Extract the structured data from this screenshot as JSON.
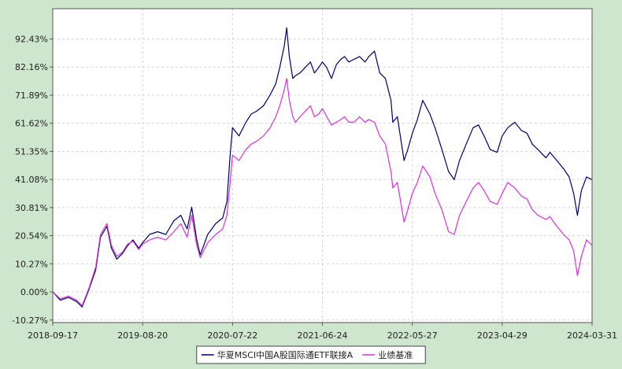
{
  "chart_data": {
    "type": "line",
    "title": "",
    "xlabel": "",
    "ylabel": "",
    "x_ticks": [
      "2018-09-17",
      "2019-08-20",
      "2020-07-22",
      "2021-06-24",
      "2022-05-27",
      "2023-04-29",
      "2024-03-31"
    ],
    "x_range": [
      "2018-09-17",
      "2024-03-31"
    ],
    "y_ticks": [
      "-10.27%",
      "0.00%",
      "10.27%",
      "20.54%",
      "30.81%",
      "41.08%",
      "51.35%",
      "61.62%",
      "71.89%",
      "82.16%",
      "92.43%"
    ],
    "ylim": [
      -11.2,
      103.5
    ],
    "grid": true,
    "legend_position": "bottom-center",
    "colors": {
      "background": "#cde6cd",
      "plot_bg": "#ffffff",
      "grid": "#d4d4d4"
    },
    "series": [
      {
        "name": "华夏MSCI中国A股国际通ETF联接A",
        "color": "#000066",
        "x": [
          "2018-09-17",
          "2018-10-15",
          "2018-11-15",
          "2018-12-15",
          "2019-01-05",
          "2019-01-31",
          "2019-02-25",
          "2019-03-15",
          "2019-04-08",
          "2019-04-25",
          "2019-05-15",
          "2019-06-05",
          "2019-06-25",
          "2019-07-15",
          "2019-08-05",
          "2019-08-20",
          "2019-09-15",
          "2019-10-15",
          "2019-11-15",
          "2019-12-15",
          "2020-01-10",
          "2020-02-03",
          "2020-02-20",
          "2020-03-10",
          "2020-03-23",
          "2020-04-20",
          "2020-05-20",
          "2020-06-15",
          "2020-07-01",
          "2020-07-13",
          "2020-07-22",
          "2020-08-15",
          "2020-09-10",
          "2020-09-30",
          "2020-10-20",
          "2020-11-15",
          "2020-12-10",
          "2020-12-31",
          "2021-01-15",
          "2021-02-01",
          "2021-02-10",
          "2021-02-20",
          "2021-03-05",
          "2021-03-15",
          "2021-04-01",
          "2021-04-20",
          "2021-05-10",
          "2021-05-25",
          "2021-06-10",
          "2021-06-24",
          "2021-07-10",
          "2021-07-28",
          "2021-08-15",
          "2021-09-01",
          "2021-09-15",
          "2021-10-01",
          "2021-10-20",
          "2021-11-10",
          "2021-12-01",
          "2021-12-15",
          "2022-01-05",
          "2022-01-25",
          "2022-02-15",
          "2022-03-08",
          "2022-03-15",
          "2022-04-01",
          "2022-04-26",
          "2022-05-10",
          "2022-05-27",
          "2022-06-15",
          "2022-07-05",
          "2022-08-01",
          "2022-08-20",
          "2022-09-15",
          "2022-10-10",
          "2022-10-31",
          "2022-11-20",
          "2022-12-15",
          "2023-01-10",
          "2023-01-30",
          "2023-02-20",
          "2023-03-15",
          "2023-04-10",
          "2023-04-29",
          "2023-05-20",
          "2023-06-15",
          "2023-07-10",
          "2023-07-31",
          "2023-08-20",
          "2023-09-10",
          "2023-10-10",
          "2023-10-25",
          "2023-11-20",
          "2023-12-15",
          "2024-01-05",
          "2024-01-22",
          "2024-02-05",
          "2024-02-20",
          "2024-03-10",
          "2024-03-31"
        ],
        "values": [
          0.0,
          -3.0,
          -2.0,
          -3.5,
          -5.5,
          1.0,
          8.0,
          20.0,
          24.0,
          16.0,
          12.0,
          14.0,
          17.0,
          19.0,
          16.0,
          18.0,
          21.0,
          22.0,
          21.0,
          26.0,
          28.0,
          23.0,
          31.0,
          19.0,
          13.5,
          21.0,
          25.0,
          27.0,
          33.0,
          50.0,
          60.0,
          57.0,
          62.0,
          65.0,
          66.0,
          68.0,
          72.0,
          76.0,
          82.0,
          90.0,
          96.5,
          86.0,
          78.0,
          79.0,
          80.0,
          82.0,
          84.0,
          80.0,
          82.0,
          84.0,
          82.0,
          78.0,
          83.0,
          85.0,
          86.0,
          84.0,
          85.0,
          86.0,
          84.0,
          86.0,
          88.0,
          80.0,
          78.0,
          70.0,
          62.0,
          64.0,
          48.0,
          52.0,
          58.0,
          63.0,
          70.0,
          65.0,
          60.0,
          52.0,
          44.0,
          41.0,
          48.0,
          54.0,
          60.0,
          61.0,
          57.0,
          52.0,
          51.0,
          57.0,
          60.0,
          62.0,
          59.0,
          58.0,
          54.0,
          52.0,
          49.0,
          51.0,
          48.0,
          45.0,
          42.0,
          36.0,
          28.0,
          37.0,
          42.0,
          41.0
        ]
      },
      {
        "name": "业绩基准",
        "color": "#d633d6",
        "x": [
          "2018-09-17",
          "2018-10-15",
          "2018-11-15",
          "2018-12-15",
          "2019-01-05",
          "2019-01-31",
          "2019-02-25",
          "2019-03-15",
          "2019-04-08",
          "2019-04-25",
          "2019-05-15",
          "2019-06-05",
          "2019-06-25",
          "2019-07-15",
          "2019-08-05",
          "2019-08-20",
          "2019-09-15",
          "2019-10-15",
          "2019-11-15",
          "2019-12-15",
          "2020-01-10",
          "2020-02-03",
          "2020-02-20",
          "2020-03-10",
          "2020-03-23",
          "2020-04-20",
          "2020-05-20",
          "2020-06-15",
          "2020-07-01",
          "2020-07-13",
          "2020-07-22",
          "2020-08-15",
          "2020-09-10",
          "2020-09-30",
          "2020-10-20",
          "2020-11-15",
          "2020-12-10",
          "2020-12-31",
          "2021-01-15",
          "2021-02-01",
          "2021-02-10",
          "2021-02-20",
          "2021-03-05",
          "2021-03-15",
          "2021-04-01",
          "2021-04-20",
          "2021-05-10",
          "2021-05-25",
          "2021-06-10",
          "2021-06-24",
          "2021-07-10",
          "2021-07-28",
          "2021-08-15",
          "2021-09-01",
          "2021-09-15",
          "2021-10-01",
          "2021-10-20",
          "2021-11-10",
          "2021-12-01",
          "2021-12-15",
          "2022-01-05",
          "2022-01-25",
          "2022-02-15",
          "2022-03-08",
          "2022-03-15",
          "2022-04-01",
          "2022-04-26",
          "2022-05-10",
          "2022-05-27",
          "2022-06-15",
          "2022-07-05",
          "2022-08-01",
          "2022-08-20",
          "2022-09-15",
          "2022-10-10",
          "2022-10-31",
          "2022-11-20",
          "2022-12-15",
          "2023-01-10",
          "2023-01-30",
          "2023-02-20",
          "2023-03-15",
          "2023-04-10",
          "2023-04-29",
          "2023-05-20",
          "2023-06-15",
          "2023-07-10",
          "2023-07-31",
          "2023-08-20",
          "2023-09-10",
          "2023-10-10",
          "2023-10-25",
          "2023-11-20",
          "2023-12-15",
          "2024-01-05",
          "2024-01-22",
          "2024-02-05",
          "2024-02-20",
          "2024-03-10",
          "2024-03-31"
        ],
        "values": [
          0.0,
          -2.5,
          -1.5,
          -3.0,
          -5.0,
          1.5,
          9.0,
          21.0,
          25.0,
          17.0,
          13.0,
          14.5,
          17.5,
          18.5,
          15.5,
          17.5,
          19.0,
          20.0,
          19.0,
          22.0,
          25.0,
          20.0,
          28.0,
          17.0,
          12.5,
          18.0,
          21.0,
          23.0,
          28.0,
          40.0,
          50.0,
          48.0,
          52.0,
          54.0,
          55.0,
          57.0,
          60.0,
          64.0,
          68.0,
          74.0,
          78.0,
          70.0,
          64.0,
          62.0,
          64.0,
          66.0,
          68.0,
          64.0,
          65.0,
          67.0,
          64.0,
          61.0,
          62.0,
          63.0,
          64.0,
          62.0,
          62.0,
          64.0,
          62.0,
          63.0,
          62.0,
          57.0,
          54.0,
          44.0,
          38.0,
          40.0,
          25.5,
          30.0,
          36.0,
          40.0,
          46.0,
          42.0,
          36.0,
          30.0,
          22.0,
          21.0,
          28.0,
          33.0,
          38.0,
          40.0,
          37.0,
          33.0,
          32.0,
          36.0,
          40.0,
          38.0,
          35.0,
          34.0,
          30.0,
          28.0,
          26.5,
          27.5,
          24.0,
          21.0,
          19.0,
          15.0,
          6.0,
          13.0,
          19.0,
          17.0
        ]
      }
    ]
  }
}
